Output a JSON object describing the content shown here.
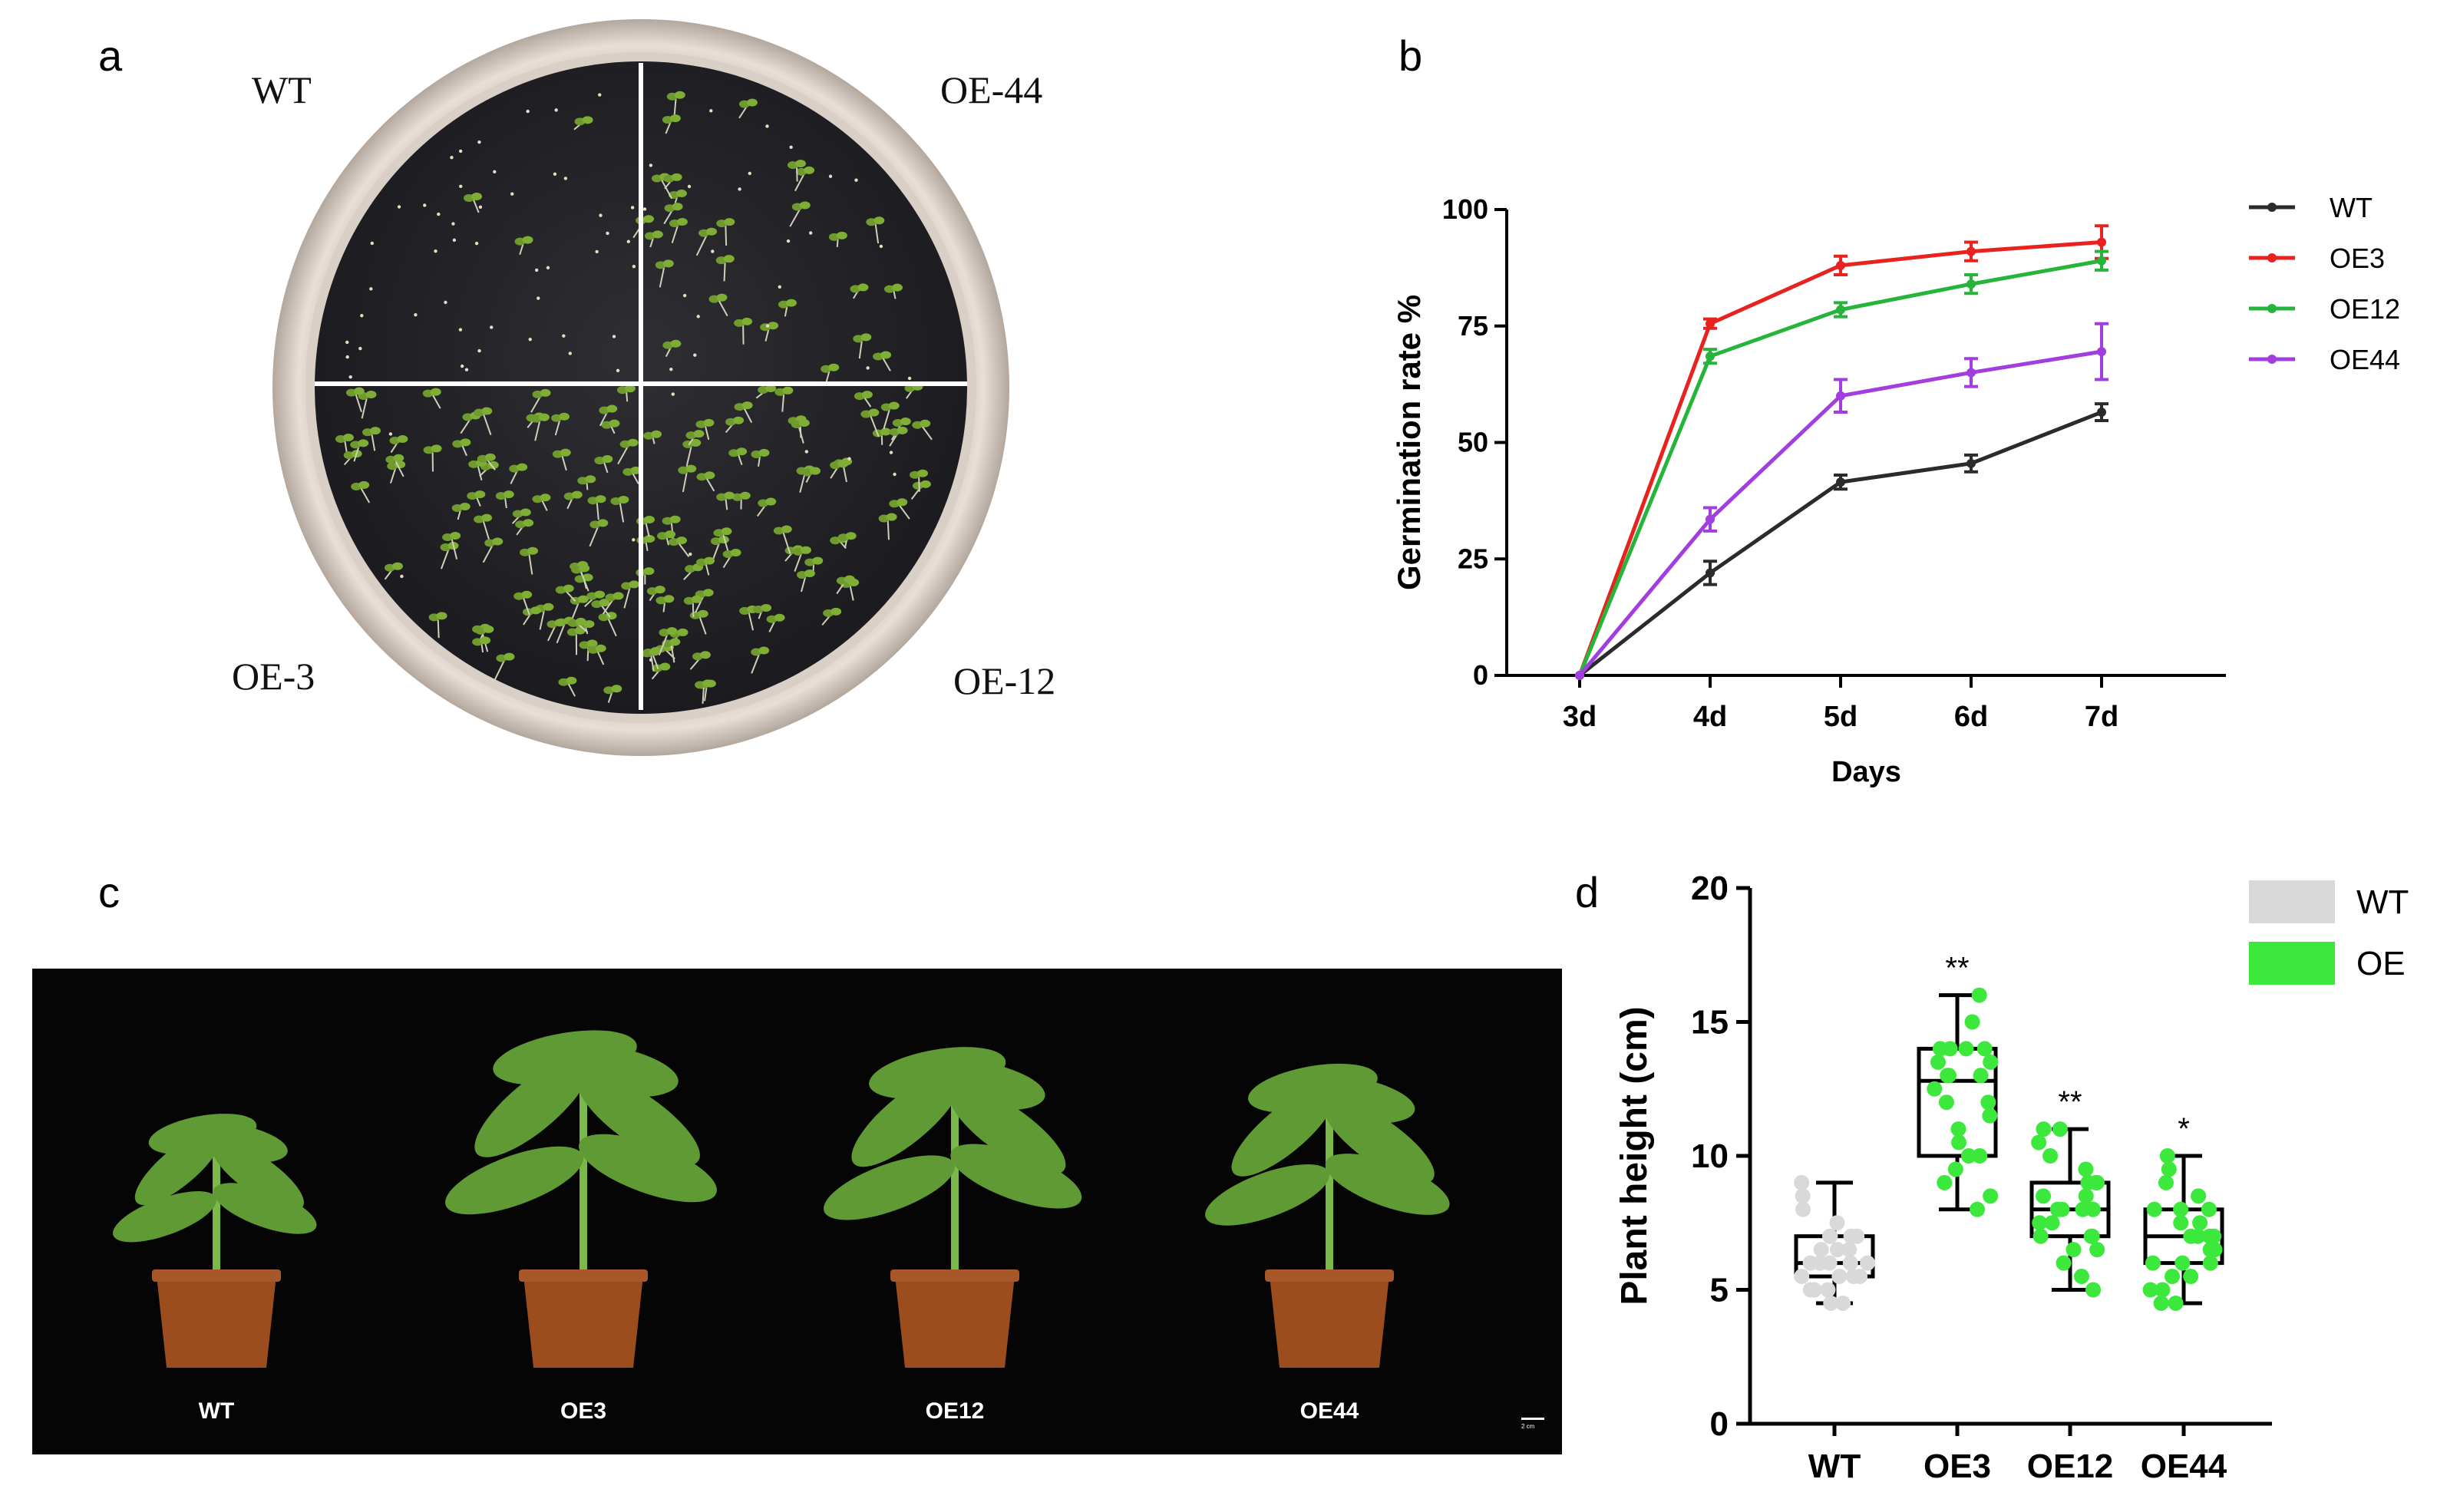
{
  "panels": {
    "a": {
      "letter": "a",
      "quadrant_labels": {
        "top_left": "WT",
        "top_right": "OE-44",
        "bottom_left": "OE-3",
        "bottom_right": "OE-12"
      }
    },
    "b": {
      "letter": "b"
    },
    "c": {
      "letter": "c",
      "plant_labels": [
        "WT",
        "OE3",
        "OE12",
        "OE44"
      ],
      "scale_bar_label": "2 cm"
    },
    "d": {
      "letter": "d"
    }
  },
  "chart_data": [
    {
      "panel": "b",
      "type": "line",
      "xlabel": "Days",
      "ylabel": "Germination rate %",
      "categories": [
        "3d",
        "4d",
        "5d",
        "6d",
        "7d"
      ],
      "ylim": [
        0,
        100
      ],
      "yticks": [
        0,
        25,
        50,
        75,
        100
      ],
      "legend_position": "right",
      "series": [
        {
          "name": "WT",
          "color": "#2b2b2b",
          "values": [
            0,
            22,
            41.5,
            45.5,
            56.5
          ],
          "errors": [
            0,
            2.5,
            1.5,
            1.8,
            1.8
          ]
        },
        {
          "name": "OE3",
          "color": "#e8221e",
          "values": [
            0,
            75.5,
            88,
            91,
            93
          ],
          "errors": [
            0,
            1,
            2,
            2,
            3.5
          ]
        },
        {
          "name": "OE12",
          "color": "#27b43a",
          "values": [
            0,
            68.5,
            78.5,
            84,
            89
          ],
          "errors": [
            0,
            1.5,
            1.5,
            2,
            2
          ]
        },
        {
          "name": "OE44",
          "color": "#a23de0",
          "values": [
            0,
            33.5,
            60,
            65,
            69.5
          ],
          "errors": [
            0,
            2.5,
            3.5,
            3,
            6
          ]
        }
      ]
    },
    {
      "panel": "d",
      "type": "box",
      "ylabel": "Plant height (cm)",
      "categories": [
        "WT",
        "OE3",
        "OE12",
        "OE44"
      ],
      "ylim": [
        0,
        20
      ],
      "yticks": [
        0,
        5,
        10,
        15,
        20
      ],
      "legend_position": "top-right",
      "legend": [
        {
          "name": "WT",
          "color": "#d9d9d9"
        },
        {
          "name": "OE",
          "color": "#3de83d"
        }
      ],
      "boxes": [
        {
          "label": "WT",
          "group": "WT",
          "min": 4.5,
          "q1": 5.5,
          "median": 6.0,
          "q3": 7.0,
          "max": 9.0,
          "significance": "",
          "points": [
            4.5,
            4.5,
            5,
            5,
            5,
            5.5,
            5.5,
            5.5,
            5.5,
            6,
            6,
            6,
            6,
            6,
            6,
            6.5,
            6.5,
            6.5,
            7,
            7,
            7,
            7,
            7.5,
            8,
            8.5,
            9
          ]
        },
        {
          "label": "OE3",
          "group": "OE",
          "min": 8.0,
          "q1": 10.0,
          "median": 12.8,
          "q3": 14.0,
          "max": 16.0,
          "significance": "**",
          "points": [
            8,
            8.5,
            9,
            9.5,
            10,
            10,
            10.5,
            11,
            11.5,
            12,
            12,
            12.5,
            13,
            13,
            13,
            13.5,
            13.5,
            14,
            14,
            14,
            14,
            15,
            16
          ]
        },
        {
          "label": "OE12",
          "group": "OE",
          "min": 5.0,
          "q1": 7.0,
          "median": 8.0,
          "q3": 9.0,
          "max": 11.0,
          "significance": "**",
          "points": [
            5,
            5.5,
            6,
            6.5,
            6.5,
            7,
            7,
            7,
            7.5,
            7.5,
            8,
            8,
            8,
            8,
            8.5,
            8.5,
            9,
            9,
            9,
            9.5,
            10,
            10.5,
            11,
            11
          ]
        },
        {
          "label": "OE44",
          "group": "OE",
          "min": 4.5,
          "q1": 6.0,
          "median": 7.0,
          "q3": 8.0,
          "max": 10.0,
          "significance": "*",
          "points": [
            4.5,
            4.5,
            5,
            5,
            5.5,
            5.5,
            6,
            6,
            6,
            6.5,
            6.5,
            7,
            7,
            7,
            7,
            7.5,
            7.5,
            8,
            8,
            8,
            8.5,
            9,
            9.5,
            10
          ]
        }
      ]
    }
  ]
}
